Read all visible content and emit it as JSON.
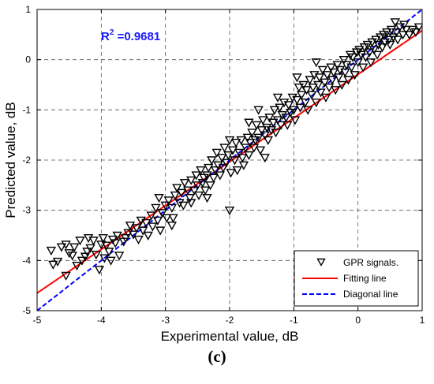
{
  "panel_label": "(c)",
  "chart_data": {
    "type": "scatter",
    "xlabel": "Experimental value, dB",
    "ylabel": "Predicted value, dB",
    "xlim": [
      -5,
      1
    ],
    "ylim": [
      -5,
      1
    ],
    "x_ticks": [
      "-5",
      "-4",
      "-3",
      "-2",
      "-1",
      "0",
      "1"
    ],
    "y_ticks": [
      "-5",
      "-4",
      "-3",
      "-2",
      "-1",
      "0",
      "1"
    ],
    "grid": true,
    "legend_position": "bottom-right",
    "annotation": {
      "label": "R",
      "superscript": "2",
      "value": " =0.9681",
      "color": "#1a1aff"
    },
    "series": [
      {
        "name": "GPR signals.",
        "kind": "scatter",
        "marker": "triangle-down",
        "color": "#000000",
        "points": [
          [
            -4.78,
            -3.8
          ],
          [
            -4.75,
            -4.08
          ],
          [
            -4.68,
            -4.02
          ],
          [
            -4.62,
            -3.73
          ],
          [
            -4.55,
            -3.68
          ],
          [
            -4.55,
            -4.3
          ],
          [
            -4.5,
            -3.85
          ],
          [
            -4.45,
            -3.9
          ],
          [
            -4.42,
            -3.73
          ],
          [
            -4.38,
            -4.1
          ],
          [
            -4.33,
            -3.6
          ],
          [
            -4.3,
            -4.0
          ],
          [
            -4.25,
            -3.92
          ],
          [
            -4.22,
            -3.82
          ],
          [
            -4.2,
            -3.55
          ],
          [
            -4.17,
            -3.75
          ],
          [
            -4.12,
            -3.6
          ],
          [
            -4.08,
            -3.88
          ],
          [
            -4.03,
            -4.18
          ],
          [
            -4.0,
            -3.68
          ],
          [
            -3.97,
            -3.55
          ],
          [
            -3.92,
            -3.7
          ],
          [
            -3.88,
            -3.82
          ],
          [
            -3.85,
            -4.0
          ],
          [
            -3.82,
            -3.58
          ],
          [
            -3.78,
            -3.65
          ],
          [
            -3.75,
            -3.5
          ],
          [
            -3.72,
            -3.9
          ],
          [
            -3.65,
            -3.62
          ],
          [
            -3.62,
            -3.55
          ],
          [
            -3.58,
            -3.45
          ],
          [
            -3.55,
            -3.3
          ],
          [
            -3.5,
            -3.48
          ],
          [
            -3.45,
            -3.35
          ],
          [
            -3.42,
            -3.58
          ],
          [
            -3.38,
            -3.2
          ],
          [
            -3.35,
            -3.4
          ],
          [
            -3.3,
            -3.25
          ],
          [
            -3.27,
            -3.5
          ],
          [
            -3.22,
            -3.1
          ],
          [
            -3.2,
            -3.32
          ],
          [
            -3.15,
            -2.95
          ],
          [
            -3.12,
            -3.2
          ],
          [
            -3.08,
            -3.4
          ],
          [
            -3.05,
            -3.05
          ],
          [
            -3.0,
            -2.9
          ],
          [
            -2.98,
            -3.15
          ],
          [
            -2.95,
            -2.8
          ],
          [
            -2.9,
            -2.95
          ],
          [
            -2.88,
            -3.15
          ],
          [
            -2.85,
            -2.7
          ],
          [
            -2.82,
            -2.55
          ],
          [
            -2.78,
            -2.85
          ],
          [
            -2.75,
            -2.65
          ],
          [
            -2.72,
            -2.9
          ],
          [
            -2.7,
            -2.45
          ],
          [
            -2.65,
            -2.6
          ],
          [
            -2.62,
            -2.75
          ],
          [
            -2.6,
            -2.4
          ],
          [
            -2.55,
            -2.6
          ],
          [
            -2.52,
            -2.3
          ],
          [
            -2.5,
            -2.5
          ],
          [
            -2.48,
            -2.7
          ],
          [
            -2.45,
            -2.2
          ],
          [
            -2.42,
            -2.45
          ],
          [
            -2.4,
            -2.35
          ],
          [
            -2.38,
            -2.6
          ],
          [
            -2.35,
            -2.3
          ],
          [
            -2.33,
            -2.15
          ],
          [
            -2.3,
            -2.5
          ],
          [
            -2.28,
            -2.0
          ],
          [
            -2.25,
            -2.35
          ],
          [
            -2.22,
            -2.2
          ],
          [
            -2.2,
            -1.85
          ],
          [
            -2.18,
            -2.1
          ],
          [
            -2.15,
            -2.3
          ],
          [
            -2.12,
            -1.95
          ],
          [
            -2.1,
            -2.15
          ],
          [
            -2.08,
            -1.75
          ],
          [
            -2.05,
            -2.05
          ],
          [
            -2.02,
            -1.9
          ],
          [
            -2.0,
            -1.6
          ],
          [
            -2.0,
            -3.0
          ],
          [
            -1.98,
            -2.25
          ],
          [
            -1.95,
            -1.8
          ],
          [
            -1.92,
            -2.0
          ],
          [
            -1.9,
            -1.65
          ],
          [
            -1.88,
            -2.2
          ],
          [
            -1.85,
            -1.85
          ],
          [
            -1.82,
            -1.6
          ],
          [
            -1.8,
            -1.95
          ],
          [
            -1.78,
            -2.1
          ],
          [
            -1.75,
            -1.75
          ],
          [
            -1.72,
            -1.55
          ],
          [
            -1.7,
            -1.9
          ],
          [
            -1.68,
            -1.65
          ],
          [
            -1.65,
            -1.45
          ],
          [
            -1.62,
            -1.75
          ],
          [
            -1.6,
            -1.6
          ],
          [
            -1.58,
            -1.3
          ],
          [
            -1.55,
            -1.55
          ],
          [
            -1.52,
            -1.8
          ],
          [
            -1.5,
            -1.4
          ],
          [
            -1.48,
            -1.2
          ],
          [
            -1.45,
            -1.5
          ],
          [
            -1.42,
            -1.35
          ],
          [
            -1.4,
            -1.6
          ],
          [
            -1.38,
            -1.15
          ],
          [
            -1.35,
            -1.4
          ],
          [
            -1.32,
            -1.25
          ],
          [
            -1.3,
            -1.0
          ],
          [
            -1.28,
            -1.45
          ],
          [
            -1.25,
            -1.2
          ],
          [
            -1.22,
            -0.95
          ],
          [
            -1.2,
            -1.3
          ],
          [
            -1.18,
            -1.1
          ],
          [
            -1.15,
            -0.85
          ],
          [
            -1.12,
            -1.15
          ],
          [
            -1.1,
            -1.3
          ],
          [
            -1.08,
            -0.9
          ],
          [
            -1.05,
            -1.05
          ],
          [
            -1.02,
            -0.75
          ],
          [
            -1.0,
            -1.0
          ],
          [
            -0.98,
            -1.2
          ],
          [
            -0.95,
            -0.8
          ],
          [
            -0.92,
            -0.55
          ],
          [
            -0.9,
            -0.95
          ],
          [
            -0.88,
            -0.7
          ],
          [
            -0.85,
            -0.5
          ],
          [
            -0.82,
            -0.85
          ],
          [
            -0.8,
            -0.6
          ],
          [
            -0.78,
            -1.0
          ],
          [
            -0.75,
            -0.4
          ],
          [
            -0.72,
            -0.7
          ],
          [
            -0.7,
            -0.55
          ],
          [
            -0.68,
            -0.3
          ],
          [
            -0.65,
            -0.85
          ],
          [
            -0.62,
            -0.5
          ],
          [
            -0.6,
            -0.35
          ],
          [
            -0.58,
            -0.65
          ],
          [
            -0.55,
            -0.2
          ],
          [
            -0.52,
            -0.45
          ],
          [
            -0.5,
            -0.75
          ],
          [
            -0.48,
            -0.3
          ],
          [
            -0.45,
            -0.55
          ],
          [
            -0.42,
            -0.15
          ],
          [
            -0.4,
            -0.4
          ],
          [
            -0.38,
            -0.25
          ],
          [
            -0.35,
            -0.6
          ],
          [
            -0.32,
            -0.1
          ],
          [
            -0.3,
            -0.35
          ],
          [
            -0.28,
            -0.2
          ],
          [
            -0.25,
            -0.5
          ],
          [
            -0.22,
            0.0
          ],
          [
            -0.2,
            -0.25
          ],
          [
            -0.18,
            -0.1
          ],
          [
            -0.15,
            -0.4
          ],
          [
            -0.12,
            0.1
          ],
          [
            -0.1,
            -0.15
          ],
          [
            -0.08,
            0.05
          ],
          [
            -0.05,
            -0.3
          ],
          [
            -0.02,
            0.15
          ],
          [
            0.0,
            -0.05
          ],
          [
            0.02,
            0.2
          ],
          [
            0.05,
            0.1
          ],
          [
            0.08,
            -0.15
          ],
          [
            0.1,
            0.25
          ],
          [
            0.12,
            0.05
          ],
          [
            0.15,
            0.3
          ],
          [
            0.18,
            0.15
          ],
          [
            0.2,
            -0.05
          ],
          [
            0.22,
            0.35
          ],
          [
            0.25,
            0.2
          ],
          [
            0.28,
            0.4
          ],
          [
            0.3,
            0.1
          ],
          [
            0.32,
            0.3
          ],
          [
            0.35,
            0.45
          ],
          [
            0.38,
            0.25
          ],
          [
            0.4,
            0.5
          ],
          [
            0.42,
            0.35
          ],
          [
            0.45,
            0.55
          ],
          [
            0.48,
            0.4
          ],
          [
            0.5,
            0.3
          ],
          [
            0.52,
            0.6
          ],
          [
            0.55,
            0.45
          ],
          [
            0.58,
            0.75
          ],
          [
            0.6,
            0.55
          ],
          [
            0.62,
            0.4
          ],
          [
            0.65,
            0.65
          ],
          [
            0.7,
            0.5
          ],
          [
            0.72,
            0.7
          ],
          [
            0.75,
            0.6
          ],
          [
            0.8,
            0.5
          ],
          [
            0.85,
            0.6
          ],
          [
            0.9,
            0.55
          ],
          [
            0.95,
            0.65
          ],
          [
            -1.7,
            -1.25
          ],
          [
            -2.6,
            -2.85
          ],
          [
            -3.1,
            -2.75
          ],
          [
            -1.55,
            -1.0
          ],
          [
            -0.95,
            -0.35
          ],
          [
            -2.9,
            -3.3
          ],
          [
            -3.95,
            -3.95
          ],
          [
            -1.25,
            -0.75
          ],
          [
            -2.35,
            -2.75
          ],
          [
            -0.65,
            -0.05
          ],
          [
            -1.45,
            -1.95
          ]
        ]
      },
      {
        "name": "Fitting line",
        "kind": "line",
        "color": "#ff0000",
        "style": "solid",
        "points": [
          [
            -5,
            -4.65
          ],
          [
            1,
            0.58
          ]
        ]
      },
      {
        "name": "Diagonal line",
        "kind": "line",
        "color": "#0000ff",
        "style": "dashed",
        "points": [
          [
            -5,
            -5
          ],
          [
            1,
            1
          ]
        ]
      }
    ]
  }
}
